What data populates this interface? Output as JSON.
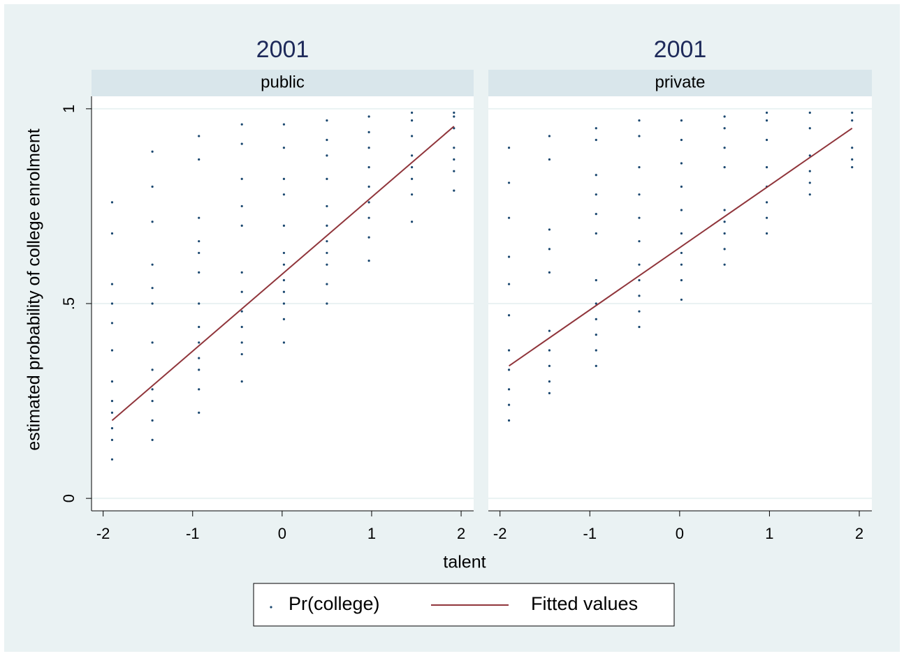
{
  "chart_data": {
    "type": "scatter",
    "ylabel": "estimated probability of college enrolment",
    "xlabel": "talent",
    "xlim": [
      -2.13,
      2.14
    ],
    "xticks": [
      -2,
      -1,
      0,
      1,
      2
    ],
    "ylim": [
      -0.032,
      1.032
    ],
    "yticks": [
      0,
      {
        "value": 0.5,
        "label": ".5"
      },
      1
    ],
    "grid": true,
    "legend_position": "bottom",
    "series": [
      {
        "name": "Pr(college)",
        "color": "#1a476f",
        "kind": "scatter"
      },
      {
        "name": "Fitted values",
        "color": "#90353b",
        "kind": "line"
      }
    ],
    "panels": [
      {
        "title": "2001",
        "subtitle": "public",
        "series": [
          {
            "x": [
              -1.9,
              -1.9,
              -1.9,
              -1.9,
              -1.9,
              -1.9,
              -1.9,
              -1.9,
              -1.9,
              -1.9,
              -1.9,
              -1.9,
              -1.45,
              -1.45,
              -1.45,
              -1.45,
              -1.45,
              -1.45,
              -1.45,
              -1.45,
              -1.45,
              -1.45,
              -1.45,
              -1.45,
              -0.93,
              -0.93,
              -0.93,
              -0.93,
              -0.93,
              -0.93,
              -0.93,
              -0.93,
              -0.93,
              -0.93,
              -0.93,
              -0.93,
              -0.93,
              -0.45,
              -0.45,
              -0.45,
              -0.45,
              -0.45,
              -0.45,
              -0.45,
              -0.45,
              -0.45,
              -0.45,
              -0.45,
              -0.45,
              0.02,
              0.02,
              0.02,
              0.02,
              0.02,
              0.02,
              0.02,
              0.02,
              0.02,
              0.02,
              0.02,
              0.02,
              0.5,
              0.5,
              0.5,
              0.5,
              0.5,
              0.5,
              0.5,
              0.5,
              0.5,
              0.5,
              0.5,
              0.97,
              0.97,
              0.97,
              0.97,
              0.97,
              0.97,
              0.97,
              0.97,
              0.97,
              1.45,
              1.45,
              1.45,
              1.45,
              1.45,
              1.45,
              1.45,
              1.45,
              1.92,
              1.92,
              1.92,
              1.92,
              1.92,
              1.92,
              1.92
            ],
            "values": [
              0.1,
              0.15,
              0.18,
              0.22,
              0.25,
              0.3,
              0.38,
              0.45,
              0.5,
              0.55,
              0.68,
              0.76,
              0.15,
              0.2,
              0.25,
              0.28,
              0.33,
              0.4,
              0.5,
              0.54,
              0.6,
              0.71,
              0.8,
              0.89,
              0.22,
              0.28,
              0.33,
              0.36,
              0.4,
              0.44,
              0.5,
              0.58,
              0.63,
              0.66,
              0.72,
              0.87,
              0.93,
              0.3,
              0.37,
              0.4,
              0.44,
              0.48,
              0.53,
              0.58,
              0.7,
              0.75,
              0.82,
              0.91,
              0.96,
              0.4,
              0.46,
              0.5,
              0.53,
              0.56,
              0.6,
              0.63,
              0.7,
              0.78,
              0.82,
              0.9,
              0.96,
              0.5,
              0.55,
              0.6,
              0.63,
              0.66,
              0.7,
              0.75,
              0.82,
              0.88,
              0.92,
              0.97,
              0.61,
              0.67,
              0.72,
              0.76,
              0.8,
              0.85,
              0.9,
              0.94,
              0.98,
              0.71,
              0.78,
              0.82,
              0.85,
              0.88,
              0.93,
              0.97,
              0.99,
              0.79,
              0.84,
              0.87,
              0.9,
              0.95,
              0.98,
              0.99
            ]
          },
          {
            "x": [
              -1.9,
              1.92
            ],
            "values": [
              0.2,
              0.955
            ]
          }
        ]
      },
      {
        "title": "2001",
        "subtitle": "private",
        "series": [
          {
            "x": [
              -1.9,
              -1.9,
              -1.9,
              -1.9,
              -1.9,
              -1.9,
              -1.9,
              -1.9,
              -1.9,
              -1.9,
              -1.9,
              -1.45,
              -1.45,
              -1.45,
              -1.45,
              -1.45,
              -1.45,
              -1.45,
              -1.45,
              -1.45,
              -1.45,
              -0.93,
              -0.93,
              -0.93,
              -0.93,
              -0.93,
              -0.93,
              -0.93,
              -0.93,
              -0.93,
              -0.93,
              -0.93,
              -0.93,
              -0.45,
              -0.45,
              -0.45,
              -0.45,
              -0.45,
              -0.45,
              -0.45,
              -0.45,
              -0.45,
              -0.45,
              -0.45,
              0.02,
              0.02,
              0.02,
              0.02,
              0.02,
              0.02,
              0.02,
              0.02,
              0.02,
              0.02,
              0.5,
              0.5,
              0.5,
              0.5,
              0.5,
              0.5,
              0.5,
              0.5,
              0.5,
              0.97,
              0.97,
              0.97,
              0.97,
              0.97,
              0.97,
              0.97,
              0.97,
              1.45,
              1.45,
              1.45,
              1.45,
              1.45,
              1.45,
              1.92,
              1.92,
              1.92,
              1.92,
              1.92
            ],
            "values": [
              0.2,
              0.24,
              0.28,
              0.33,
              0.38,
              0.47,
              0.55,
              0.62,
              0.72,
              0.81,
              0.9,
              0.27,
              0.3,
              0.34,
              0.38,
              0.43,
              0.58,
              0.64,
              0.69,
              0.87,
              0.93,
              0.34,
              0.38,
              0.42,
              0.46,
              0.5,
              0.56,
              0.68,
              0.73,
              0.78,
              0.83,
              0.92,
              0.95,
              0.44,
              0.48,
              0.52,
              0.56,
              0.6,
              0.66,
              0.72,
              0.78,
              0.85,
              0.93,
              0.97,
              0.51,
              0.56,
              0.6,
              0.63,
              0.68,
              0.74,
              0.8,
              0.86,
              0.92,
              0.97,
              0.6,
              0.64,
              0.68,
              0.71,
              0.74,
              0.85,
              0.9,
              0.95,
              0.98,
              0.68,
              0.72,
              0.76,
              0.8,
              0.85,
              0.92,
              0.97,
              0.99,
              0.78,
              0.81,
              0.84,
              0.88,
              0.95,
              0.99,
              0.85,
              0.87,
              0.9,
              0.97,
              0.99
            ]
          },
          {
            "x": [
              -1.9,
              1.92
            ],
            "values": [
              0.34,
              0.95
            ]
          }
        ]
      }
    ]
  }
}
